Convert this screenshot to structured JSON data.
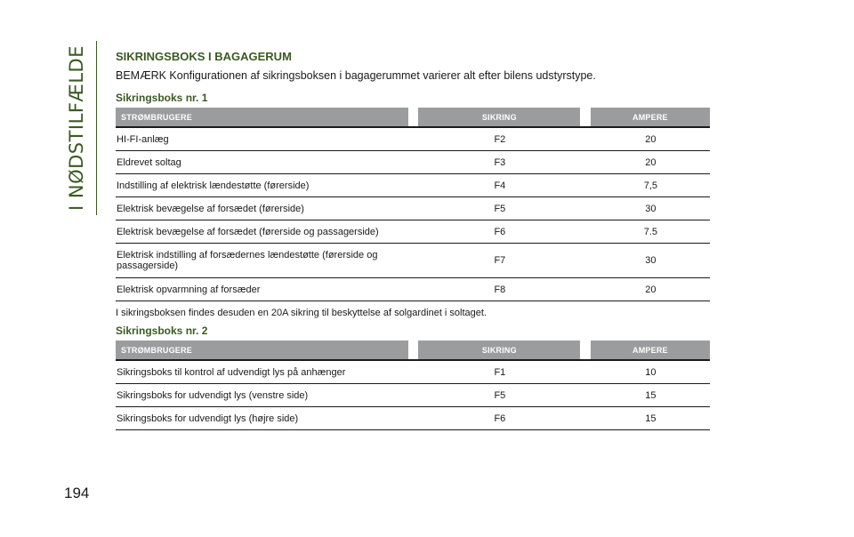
{
  "side_tab": "I NØDSTILFÆLDE",
  "page_number": "194",
  "title": "SIKRINGSBOKS I BAGAGERUM",
  "note": "BEMÆRK Konfigurationen af sikringsboksen i bagagerummet varierer alt efter bilens udstyrstype.",
  "table1": {
    "heading": "Sikringsboks nr. 1",
    "columns": [
      "STRØMBRUGERE",
      "SIKRING",
      "AMPERE"
    ],
    "rows": [
      [
        "HI-FI-anlæg",
        "F2",
        "20"
      ],
      [
        "Eldrevet soltag",
        "F3",
        "20"
      ],
      [
        "Indstilling af elektrisk lændestøtte (førerside)",
        "F4",
        "7,5"
      ],
      [
        "Elektrisk bevægelse af forsædet (førerside)",
        "F5",
        "30"
      ],
      [
        "Elektrisk bevægelse af forsædet (førerside og passagerside)",
        "F6",
        "7.5"
      ],
      [
        "Elektrisk indstilling af forsædernes lændestøtte (førerside og passagerside)",
        "F7",
        "30"
      ],
      [
        "Elektrisk opvarmning af forsæder",
        "F8",
        "20"
      ]
    ]
  },
  "footnote": "I sikringsboksen findes desuden en 20A sikring til beskyttelse af solgardinet i soltaget.",
  "table2": {
    "heading": "Sikringsboks nr. 2",
    "columns": [
      "STRØMBRUGERE",
      "SIKRING",
      "AMPERE"
    ],
    "rows": [
      [
        "Sikringsboks til kontrol af udvendigt lys på anhænger",
        "F1",
        "10"
      ],
      [
        "Sikringsboks for udvendigt lys (venstre side)",
        "F5",
        "15"
      ],
      [
        "Sikringsboks for udvendigt lys (højre side)",
        "F6",
        "15"
      ]
    ]
  }
}
